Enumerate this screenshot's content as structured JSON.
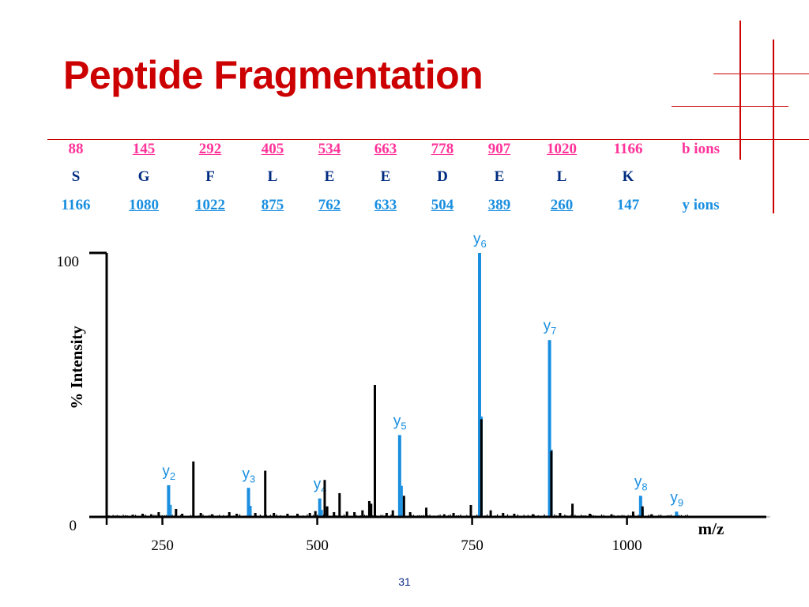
{
  "slide": {
    "title": "Peptide Fragmentation",
    "page_number": "31"
  },
  "sequence": {
    "b_ions": [
      "88",
      "145",
      "292",
      "405",
      "534",
      "663",
      "778",
      "907",
      "1020",
      "1166"
    ],
    "b_label": "b ions",
    "residues": [
      "S",
      "G",
      "F",
      "L",
      "E",
      "E",
      "D",
      "E",
      "L",
      "K"
    ],
    "y_ions": [
      "1166",
      "1080",
      "1022",
      "875",
      "762",
      "633",
      "504",
      "389",
      "260",
      "147"
    ],
    "y_label": "y ions",
    "underlined": [
      false,
      true,
      true,
      true,
      true,
      true,
      true,
      true,
      true,
      false
    ]
  },
  "colors": {
    "title": "#cc0000",
    "b_ions": "#ff3399",
    "y_ions": "#1a8fe0",
    "residues": "#002b80",
    "other_peaks": "#000000",
    "decoration": "#cc0000"
  },
  "chart_data": {
    "type": "bar",
    "xlabel": "m/z",
    "ylabel": "% Intensity",
    "xticks": [
      250,
      500,
      750,
      1000
    ],
    "yticks": [
      0,
      100
    ],
    "xlim": [
      160,
      1225
    ],
    "ylim": [
      0,
      100
    ],
    "grid": false,
    "series": [
      {
        "name": "y ions",
        "color": "#1a8fe0",
        "points": [
          {
            "x": 260,
            "y": 12,
            "label": "y",
            "sub": "2"
          },
          {
            "x": 389,
            "y": 11,
            "label": "y",
            "sub": "3"
          },
          {
            "x": 504,
            "y": 7,
            "label": "y",
            "sub": "4"
          },
          {
            "x": 633,
            "y": 31,
            "label": "y",
            "sub": "5"
          },
          {
            "x": 762,
            "y": 100,
            "label": "y",
            "sub": "6"
          },
          {
            "x": 875,
            "y": 67,
            "label": "y",
            "sub": "7"
          },
          {
            "x": 1022,
            "y": 8,
            "label": "y",
            "sub": "8"
          },
          {
            "x": 1080,
            "y": 2,
            "label": "y",
            "sub": "9"
          }
        ]
      },
      {
        "name": "",
        "color": "#000000",
        "points": [
          {
            "x": 202,
            "y": 0.8
          },
          {
            "x": 218,
            "y": 1.2
          },
          {
            "x": 232,
            "y": 1.0
          },
          {
            "x": 244,
            "y": 1.8
          },
          {
            "x": 272,
            "y": 3.0
          },
          {
            "x": 282,
            "y": 1.2
          },
          {
            "x": 300,
            "y": 21
          },
          {
            "x": 312,
            "y": 1.5
          },
          {
            "x": 330,
            "y": 1.0
          },
          {
            "x": 358,
            "y": 1.8
          },
          {
            "x": 370,
            "y": 1.2
          },
          {
            "x": 400,
            "y": 1.5
          },
          {
            "x": 416,
            "y": 17.5
          },
          {
            "x": 430,
            "y": 1.5
          },
          {
            "x": 452,
            "y": 1.2
          },
          {
            "x": 468,
            "y": 1.2
          },
          {
            "x": 488,
            "y": 1.5
          },
          {
            "x": 497,
            "y": 2.2
          },
          {
            "x": 512,
            "y": 14
          },
          {
            "x": 516,
            "y": 4
          },
          {
            "x": 527,
            "y": 1.8
          },
          {
            "x": 536,
            "y": 9
          },
          {
            "x": 548,
            "y": 2.0
          },
          {
            "x": 560,
            "y": 1.8
          },
          {
            "x": 573,
            "y": 2.5
          },
          {
            "x": 584,
            "y": 6
          },
          {
            "x": 587,
            "y": 5
          },
          {
            "x": 593,
            "y": 50
          },
          {
            "x": 612,
            "y": 1.5
          },
          {
            "x": 622,
            "y": 2.5
          },
          {
            "x": 640,
            "y": 8
          },
          {
            "x": 650,
            "y": 1.8
          },
          {
            "x": 676,
            "y": 3.5
          },
          {
            "x": 705,
            "y": 1.0
          },
          {
            "x": 720,
            "y": 1.5
          },
          {
            "x": 748,
            "y": 4.5
          },
          {
            "x": 765,
            "y": 37
          },
          {
            "x": 780,
            "y": 2.5
          },
          {
            "x": 800,
            "y": 1.5
          },
          {
            "x": 818,
            "y": 1.2
          },
          {
            "x": 848,
            "y": 1.0
          },
          {
            "x": 878,
            "y": 25
          },
          {
            "x": 892,
            "y": 1.5
          },
          {
            "x": 912,
            "y": 5
          },
          {
            "x": 940,
            "y": 1.2
          },
          {
            "x": 975,
            "y": 1.0
          },
          {
            "x": 1010,
            "y": 2.0
          },
          {
            "x": 1025,
            "y": 4
          },
          {
            "x": 1040,
            "y": 1.0
          }
        ]
      }
    ]
  }
}
